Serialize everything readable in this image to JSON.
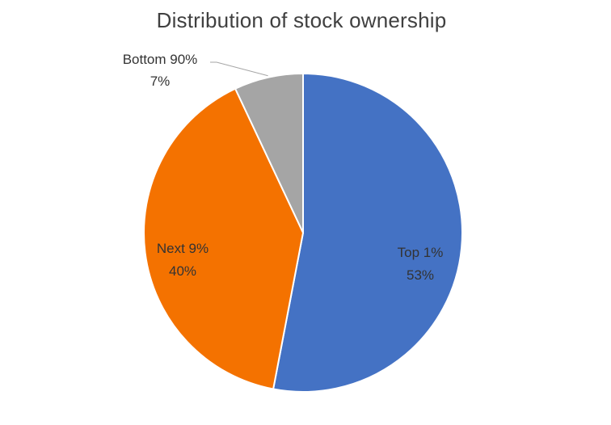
{
  "chart_data": {
    "type": "pie",
    "title": "Distribution of stock ownership",
    "slices": [
      {
        "name": "Top 1%",
        "value": 53,
        "value_label": "53%",
        "color": "#4472c4",
        "label_color": "#333333"
      },
      {
        "name": "Next 9%",
        "value": 40,
        "value_label": "40%",
        "color": "#f47200",
        "label_color": "#333333"
      },
      {
        "name": "Bottom 90%",
        "value": 7,
        "value_label": "7%",
        "color": "#a5a5a5",
        "label_color": "#333333"
      }
    ],
    "start_angle": "12 o'clock",
    "direction": "clockwise",
    "legend": "none",
    "border_color": "#ffffff"
  }
}
